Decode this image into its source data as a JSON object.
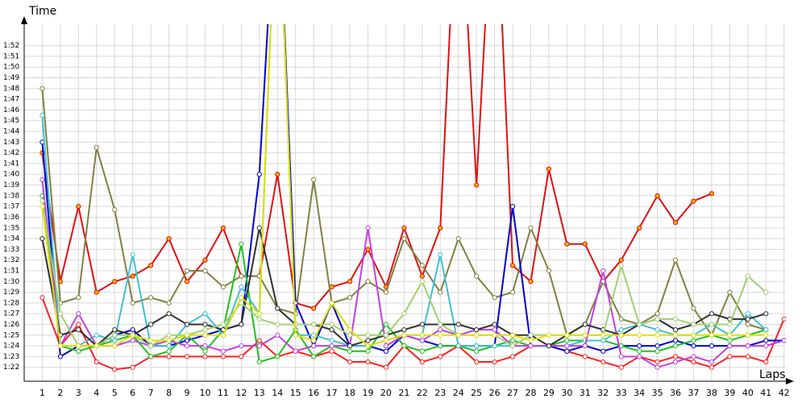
{
  "chart_data": {
    "type": "line",
    "y_label": "Time",
    "x_label": "Laps",
    "x": [
      1,
      2,
      3,
      4,
      5,
      6,
      7,
      8,
      9,
      10,
      11,
      12,
      13,
      14,
      15,
      16,
      17,
      18,
      19,
      20,
      21,
      22,
      23,
      24,
      25,
      26,
      27,
      28,
      29,
      30,
      31,
      32,
      33,
      34,
      35,
      36,
      37,
      38,
      39,
      40,
      41,
      42
    ],
    "xlim": [
      0,
      42.1
    ],
    "ylim": [
      80.7,
      114
    ],
    "grid": true,
    "yticks": [
      {
        "value": 82,
        "label": "1:22"
      },
      {
        "value": 83,
        "label": "1:23"
      },
      {
        "value": 84,
        "label": "1:24"
      },
      {
        "value": 85,
        "label": "1:25"
      },
      {
        "value": 86,
        "label": "1:26"
      },
      {
        "value": 87,
        "label": "1:27"
      },
      {
        "value": 88,
        "label": "1:28"
      },
      {
        "value": 89,
        "label": "1:29"
      },
      {
        "value": 90,
        "label": "1:30"
      },
      {
        "value": 91,
        "label": "1:31"
      },
      {
        "value": 92,
        "label": "1:32"
      },
      {
        "value": 93,
        "label": "1:33"
      },
      {
        "value": 94,
        "label": "1:34"
      },
      {
        "value": 95,
        "label": "1:35"
      },
      {
        "value": 96,
        "label": "1:36"
      },
      {
        "value": 97,
        "label": "1:37"
      },
      {
        "value": 98,
        "label": "1:38"
      },
      {
        "value": 99,
        "label": "1:39"
      },
      {
        "value": 100,
        "label": "1:40"
      },
      {
        "value": 101,
        "label": "1:41"
      },
      {
        "value": 102,
        "label": "1:42"
      },
      {
        "value": 103,
        "label": "1:43"
      },
      {
        "value": 104,
        "label": "1:44"
      },
      {
        "value": 105,
        "label": "1:45"
      },
      {
        "value": 106,
        "label": "1:46"
      },
      {
        "value": 107,
        "label": "1:47"
      },
      {
        "value": 108,
        "label": "1:48"
      },
      {
        "value": 109,
        "label": "1:49"
      },
      {
        "value": 110,
        "label": "1:50"
      },
      {
        "value": 111,
        "label": "1:51"
      },
      {
        "value": 112,
        "label": "1:52"
      }
    ],
    "series": [
      {
        "color": "#e01010",
        "marker_color": "#ffb000",
        "values": [
          102,
          90,
          97,
          89,
          90,
          90.5,
          91.5,
          94,
          90,
          92,
          95,
          90.5,
          90.5,
          100,
          88,
          87.5,
          89.5,
          90,
          93,
          89.5,
          95,
          90.5,
          95,
          130,
          99,
          130,
          91.5,
          90,
          100.5,
          93.5,
          93.5,
          90,
          92,
          95,
          98,
          95.5,
          97.5,
          98.2,
          null,
          null,
          null,
          null
        ]
      },
      {
        "color": "#ff2020",
        "values": [
          88.5,
          84,
          86,
          82.5,
          81.8,
          82,
          83,
          83,
          83,
          83,
          83,
          83,
          84.5,
          83,
          83.5,
          83,
          83.5,
          82.5,
          82.5,
          82,
          84,
          82.5,
          83,
          84,
          82.5,
          82.5,
          83,
          84,
          84,
          83.5,
          83,
          82.5,
          82,
          83,
          82.5,
          83,
          82.5,
          82,
          83,
          83,
          82.5,
          86.5
        ]
      },
      {
        "color": "#808040",
        "values": [
          108,
          88,
          88.5,
          102.5,
          96.7,
          88,
          88.5,
          88,
          91,
          91,
          89.5,
          90.5,
          90.5,
          87.5,
          87,
          99.5,
          88,
          88.5,
          90,
          89,
          94,
          91.5,
          89,
          94,
          90.5,
          88.5,
          89,
          95,
          91,
          85,
          86,
          90,
          86.5,
          86,
          87,
          92,
          87.5,
          85,
          89,
          86,
          85.5,
          null
        ]
      },
      {
        "color": "#0000d0",
        "values": [
          103,
          83,
          84,
          84,
          85,
          85.5,
          84,
          84,
          84.5,
          85,
          85.5,
          86,
          100,
          130,
          88,
          84,
          88,
          84,
          84,
          83.5,
          85,
          84.5,
          84,
          84,
          84,
          84,
          97,
          84,
          84,
          83.5,
          84,
          83.5,
          84,
          84,
          84,
          84.5,
          84,
          84,
          84,
          84,
          84.5,
          84.5
        ]
      },
      {
        "color": "#20c020",
        "values": [
          98,
          84,
          83.5,
          84,
          84.5,
          85,
          83,
          83.5,
          85,
          83.5,
          85.5,
          93.5,
          82.5,
          83,
          85.5,
          83,
          84,
          83.5,
          83.5,
          86,
          84,
          83.5,
          84,
          84,
          83.5,
          84,
          84.5,
          84,
          84,
          84.5,
          84.5,
          84.5,
          84,
          83.5,
          83.5,
          84,
          84.5,
          85,
          84.5,
          85,
          85.5,
          null
        ]
      },
      {
        "color": "#40c0d0",
        "values": [
          105.5,
          84,
          84,
          85,
          84.5,
          92.5,
          84,
          84,
          86,
          87,
          85,
          89.5,
          87,
          130,
          85,
          85,
          84.5,
          84,
          84,
          84.5,
          85,
          85,
          92.5,
          84,
          84,
          84,
          84,
          84,
          84,
          84,
          84.5,
          84.5,
          85.5,
          86,
          85.5,
          85,
          85,
          86,
          85,
          87,
          85.5,
          null
        ]
      },
      {
        "color": "#c040e0",
        "values": [
          99.5,
          84,
          87,
          84,
          84,
          84.5,
          84,
          84.5,
          84,
          84,
          83.5,
          84,
          84,
          85,
          83.5,
          84,
          84,
          84,
          95,
          84,
          85,
          84.5,
          85.5,
          85,
          85.5,
          85.5,
          84,
          84,
          84,
          84,
          84,
          91,
          83,
          83,
          82,
          82.5,
          83,
          82.5,
          84,
          84,
          84,
          84.5
        ]
      },
      {
        "color": "#303030",
        "values": [
          94,
          85,
          85.5,
          84,
          85.5,
          85,
          86,
          87,
          86,
          86,
          85.5,
          86,
          95,
          87.5,
          86,
          86,
          85.5,
          84,
          84.5,
          85,
          85.5,
          86,
          86,
          86,
          85.5,
          86,
          85,
          85,
          84,
          85,
          86,
          85.5,
          85,
          86,
          86.5,
          85.5,
          86,
          87,
          86.5,
          86.5,
          87,
          null
        ]
      },
      {
        "color": "#a0d070",
        "values": [
          97.5,
          87,
          84,
          84,
          85,
          85,
          84,
          85,
          85,
          85.5,
          86,
          88,
          86.5,
          86,
          86,
          86,
          86,
          85,
          85,
          85,
          87,
          90,
          86,
          85,
          85,
          85,
          84,
          85,
          85,
          85,
          85,
          85,
          91.5,
          86,
          86.5,
          86.5,
          86,
          86,
          86,
          90.5,
          89,
          null
        ]
      },
      {
        "color": "#e0e000",
        "values": [
          97,
          84,
          84,
          84,
          84,
          85,
          84.5,
          84.5,
          85,
          85,
          85,
          88.5,
          87,
          130,
          85,
          84.5,
          88,
          85.5,
          84,
          84.5,
          85,
          85,
          85,
          85,
          85,
          85,
          85,
          84.5,
          85,
          85,
          85,
          85,
          85,
          85,
          85,
          85,
          85,
          85,
          85,
          85,
          85,
          null
        ]
      }
    ]
  }
}
